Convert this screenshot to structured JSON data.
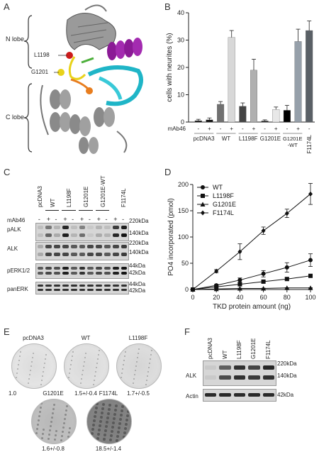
{
  "panels": {
    "a": "A",
    "b": "B",
    "c": "C",
    "d": "D",
    "e": "E",
    "f": "F"
  },
  "panel_a": {
    "n_lobe": "N lobe",
    "c_lobe": "C lobe",
    "residues": [
      "L1198",
      "G1201"
    ],
    "colors": {
      "helix_magenta": "#8b1a96",
      "helix_cyan": "#1fb5c7",
      "core_grey": "#8c8c8c",
      "loop_orange": "#e87d1e",
      "l1198": "#cc1a1a",
      "g1201": "#e8d21a",
      "green": "#4caf3a"
    }
  },
  "chart_b": {
    "type": "bar",
    "ylabel": "cells with neurites (%)",
    "ylim": [
      0,
      40
    ],
    "yticks": [
      "0",
      "10",
      "20",
      "30",
      "40"
    ],
    "mab46_label": "mAb46",
    "mab46_signs": [
      "-",
      "+",
      "-",
      "+",
      "-",
      "+",
      "-",
      "+",
      "-",
      "+",
      "-"
    ],
    "groups": [
      "pcDNA3",
      "WT",
      "L1198F",
      "G1201E",
      "G1201E -WT",
      "F1174L"
    ],
    "values": [
      0.5,
      0.8,
      6.5,
      31,
      5.8,
      19,
      0.4,
      4.6,
      4.3,
      29.5,
      33.5
    ],
    "errors": [
      0.5,
      0.7,
      1,
      2.5,
      1.2,
      4,
      0.4,
      0.9,
      1.8,
      4.5,
      3.5
    ],
    "colors": [
      "#111111",
      "#111111",
      "#707070",
      "#d8d8d8",
      "#444444",
      "#b0b0b0",
      "#1e1e1e",
      "#e8e8e8",
      "#000000",
      "#96a0aa",
      "#5a6066"
    ]
  },
  "panel_c": {
    "lanes": [
      "pcDNA3",
      "WT",
      "L1198F",
      "G1201E",
      "G1201E-WT",
      "F1174L"
    ],
    "mab46_label": "mAb46",
    "mab46_signs": [
      "-",
      "+",
      "-",
      "+",
      "-",
      "+",
      "-",
      "+",
      "-",
      "+",
      "-"
    ],
    "rows": [
      "pALK",
      "ALK",
      "pERK1/2",
      "panERK"
    ],
    "markers": {
      "palk": [
        "220kDa",
        "140kDa"
      ],
      "alk": [
        "220kDa",
        "140kDa"
      ],
      "perk": [
        "44kDa",
        "42kDa"
      ],
      "panerk": [
        "44kDa",
        "42kDa"
      ]
    }
  },
  "chart_d": {
    "type": "line",
    "xlabel": "TKD protein amount (ng)",
    "ylabel": "PO4 incorporated (pmol)",
    "xlim": [
      0,
      100
    ],
    "ylim": [
      0,
      200
    ],
    "xticks": [
      "0",
      "20",
      "40",
      "60",
      "80",
      "100"
    ],
    "yticks": [
      "0",
      "50",
      "100",
      "150",
      "200"
    ],
    "x": [
      0,
      20,
      40,
      60,
      80,
      100
    ],
    "series": [
      {
        "name": "WT",
        "marker": "circle",
        "values": [
          0,
          8,
          18,
          30,
          42,
          56
        ],
        "errors": [
          0,
          2,
          4,
          6,
          9,
          12
        ]
      },
      {
        "name": "L1198F",
        "marker": "square",
        "values": [
          0,
          5,
          10,
          15,
          20,
          26
        ],
        "errors": [
          0,
          1,
          2,
          2,
          3,
          3
        ]
      },
      {
        "name": "G1201E",
        "marker": "triangle",
        "values": [
          0,
          1,
          2,
          2,
          3,
          3
        ],
        "errors": [
          0,
          0.5,
          0.5,
          0.5,
          0.5,
          0.5
        ]
      },
      {
        "name": "F1174L",
        "marker": "diamond",
        "values": [
          0,
          35,
          72,
          112,
          145,
          182
        ],
        "errors": [
          0,
          3,
          15,
          7,
          8,
          20
        ]
      }
    ]
  },
  "panel_e": {
    "dishes": [
      {
        "name": "pcDNA3",
        "value": "1.0",
        "density": 0.1
      },
      {
        "name": "WT",
        "value": "1.5+/-0.4",
        "density": 0.12
      },
      {
        "name": "L1198F",
        "value": "1.7+/-0.5",
        "density": 0.15
      },
      {
        "name": "G1201E",
        "value": "1.6+/-0.8",
        "density": 0.35
      },
      {
        "name": "F1174L",
        "value": "18.5+/-1.4",
        "density": 0.75
      }
    ]
  },
  "panel_f": {
    "lanes": [
      "pcDNA3",
      "WT",
      "L1198F",
      "G1201E",
      "F1174L"
    ],
    "rows": [
      "ALK",
      "Actin"
    ],
    "markers": {
      "alk": [
        "220kDa",
        "140kDa"
      ],
      "actin": "42kDa"
    }
  }
}
